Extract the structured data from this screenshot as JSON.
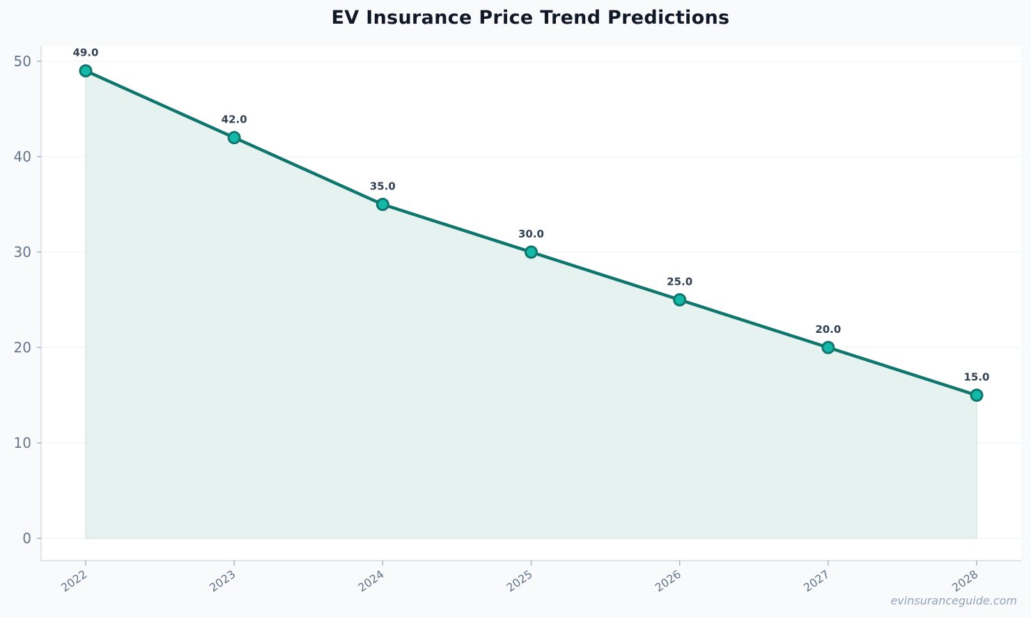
{
  "chart_data": {
    "type": "line",
    "title": "EV Insurance Price Trend Predictions",
    "xlabel": "",
    "ylabel": "",
    "x": [
      "2022",
      "2023",
      "2024",
      "2025",
      "2026",
      "2027",
      "2028"
    ],
    "series": [
      {
        "values": [
          49.0,
          42.0,
          35.0,
          30.0,
          25.0,
          20.0,
          15.0
        ],
        "data_labels": [
          "49.0",
          "42.0",
          "35.0",
          "30.0",
          "25.0",
          "20.0",
          "15.0"
        ]
      }
    ],
    "yticks": [
      "0",
      "10",
      "20",
      "30",
      "40",
      "50"
    ],
    "ylim": [
      -2.3,
      51.5
    ],
    "grid": true,
    "area_fill": true,
    "colors": {
      "line": "#0f766e",
      "marker": "#14b8a6",
      "area": "#e6f2ef",
      "background": "#f8fafc"
    }
  },
  "watermark": "evinsuranceguide.com"
}
